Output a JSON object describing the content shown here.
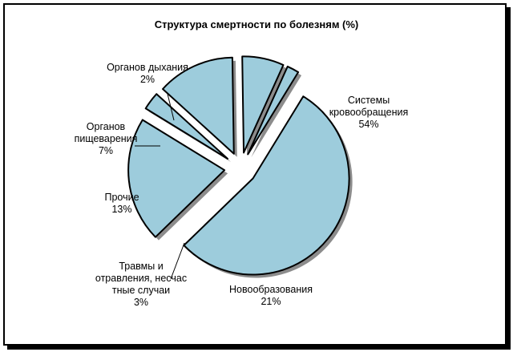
{
  "chart_data": {
    "type": "pie",
    "title": "Структура смертности по болезням (%)",
    "categories": [
      "Системы кровообращения",
      "Новообразования",
      "Травмы и отравления, несчастные случаи",
      "Прочие",
      "Органов пищеварения",
      "Органов дыхания"
    ],
    "values": [
      54,
      21,
      3,
      13,
      7,
      2
    ],
    "value_labels": [
      "54%",
      "21%",
      "3%",
      "13%",
      "7%",
      "2%"
    ],
    "label_lines": [
      [
        "Системы",
        "кровообращения"
      ],
      [
        "Новообразования"
      ],
      [
        "Травмы и",
        "отравления, несчас",
        "тные случаи"
      ],
      [
        "Прочие"
      ],
      [
        "Органов",
        "пищеварения"
      ],
      [
        "Органов дыхания"
      ]
    ],
    "exploded": true,
    "slice_color": "#9dccdc",
    "legend": "none"
  }
}
